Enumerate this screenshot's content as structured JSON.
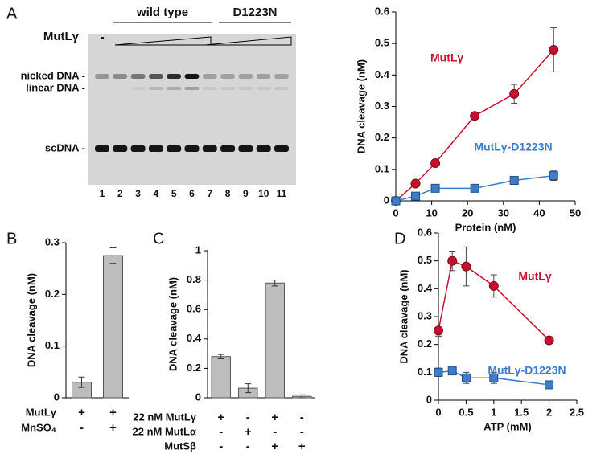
{
  "gel": {
    "panel": "A",
    "row_label": "MutLγ",
    "minus": "-",
    "group_labels": [
      "wild type",
      "D1223N"
    ],
    "bands": [
      "nicked DNA -",
      "linear DNA -",
      "scDNA -"
    ],
    "lanes": [
      "1",
      "2",
      "3",
      "4",
      "5",
      "6",
      "7",
      "8",
      "9",
      "10",
      "11"
    ]
  },
  "chart_data": [
    {
      "type": "line",
      "xlabel": "Protein (nM)",
      "ylabel": "DNA cleavage (nM)",
      "xlim": [
        0,
        50
      ],
      "xticks": [
        0,
        10,
        20,
        30,
        40,
        50
      ],
      "ylim": [
        0,
        0.6
      ],
      "yticks": [
        0,
        0.1,
        0.2,
        0.3,
        0.4,
        0.5,
        0.6
      ],
      "x": [
        0,
        5.5,
        11,
        22,
        33,
        44
      ],
      "series": [
        {
          "name": "MutLγ",
          "color": "#c8102e",
          "marker": "circle",
          "values": [
            0,
            0.055,
            0.12,
            0.27,
            0.34,
            0.48
          ],
          "errors": [
            0,
            0.005,
            0.008,
            0.01,
            0.03,
            0.07
          ]
        },
        {
          "name": "MutLγ-D1223N",
          "color": "#3d7cc9",
          "marker": "square",
          "values": [
            0,
            0.015,
            0.04,
            0.04,
            0.065,
            0.08
          ],
          "errors": [
            0,
            0.005,
            0.005,
            0.005,
            0.01,
            0.015
          ]
        }
      ]
    },
    {
      "type": "bar",
      "panel": "B",
      "ylabel": "DNA cleavage (nM)",
      "ylim": [
        0,
        0.3
      ],
      "yticks": [
        0,
        0.1,
        0.2,
        0.3
      ],
      "color": "#bdbdbd",
      "values": [
        0.03,
        0.275
      ],
      "errors": [
        0.01,
        0.015
      ],
      "condition_rows": [
        {
          "label": "MutLγ",
          "marks": [
            "+",
            "+"
          ]
        },
        {
          "label": "MnSO₄",
          "marks": [
            "-",
            "+"
          ]
        }
      ]
    },
    {
      "type": "bar",
      "panel": "C",
      "ylabel": "DNA cleavage (nM)",
      "ylim": [
        0,
        1
      ],
      "yticks": [
        0,
        0.2,
        0.4,
        0.6,
        0.8,
        1
      ],
      "color": "#bdbdbd",
      "values": [
        0.28,
        0.065,
        0.78,
        0.01
      ],
      "errors": [
        0.015,
        0.03,
        0.02,
        0.01
      ],
      "condition_rows": [
        {
          "label": "22 nM MutLγ",
          "marks": [
            "+",
            "-",
            "+",
            "-"
          ]
        },
        {
          "label": "22 nM MutLα",
          "marks": [
            "-",
            "+",
            "-",
            "-"
          ]
        },
        {
          "label": "MutSβ",
          "marks": [
            "-",
            "-",
            "+",
            "+"
          ]
        }
      ]
    },
    {
      "type": "line",
      "panel": "D",
      "xlabel": "ATP (mM)",
      "ylabel": "DNA cleavage (nM)",
      "xlim": [
        0,
        2.5
      ],
      "xticks": [
        0,
        0.5,
        1,
        1.5,
        2,
        2.5
      ],
      "ylim": [
        0,
        0.6
      ],
      "yticks": [
        0,
        0.1,
        0.2,
        0.3,
        0.4,
        0.5,
        0.6
      ],
      "x": [
        0,
        0.25,
        0.5,
        1,
        2
      ],
      "series": [
        {
          "name": "MutLγ",
          "color": "#c8102e",
          "marker": "circle",
          "values": [
            0.25,
            0.5,
            0.48,
            0.41,
            0.215
          ],
          "errors": [
            0.02,
            0.035,
            0.07,
            0.04,
            0.005
          ]
        },
        {
          "name": "MutLγ-D1223N",
          "color": "#3d7cc9",
          "marker": "square",
          "values": [
            0.1,
            0.105,
            0.08,
            0.08,
            0.055
          ],
          "errors": [
            0.015,
            0.01,
            0.02,
            0.02,
            0.005
          ]
        }
      ]
    }
  ]
}
